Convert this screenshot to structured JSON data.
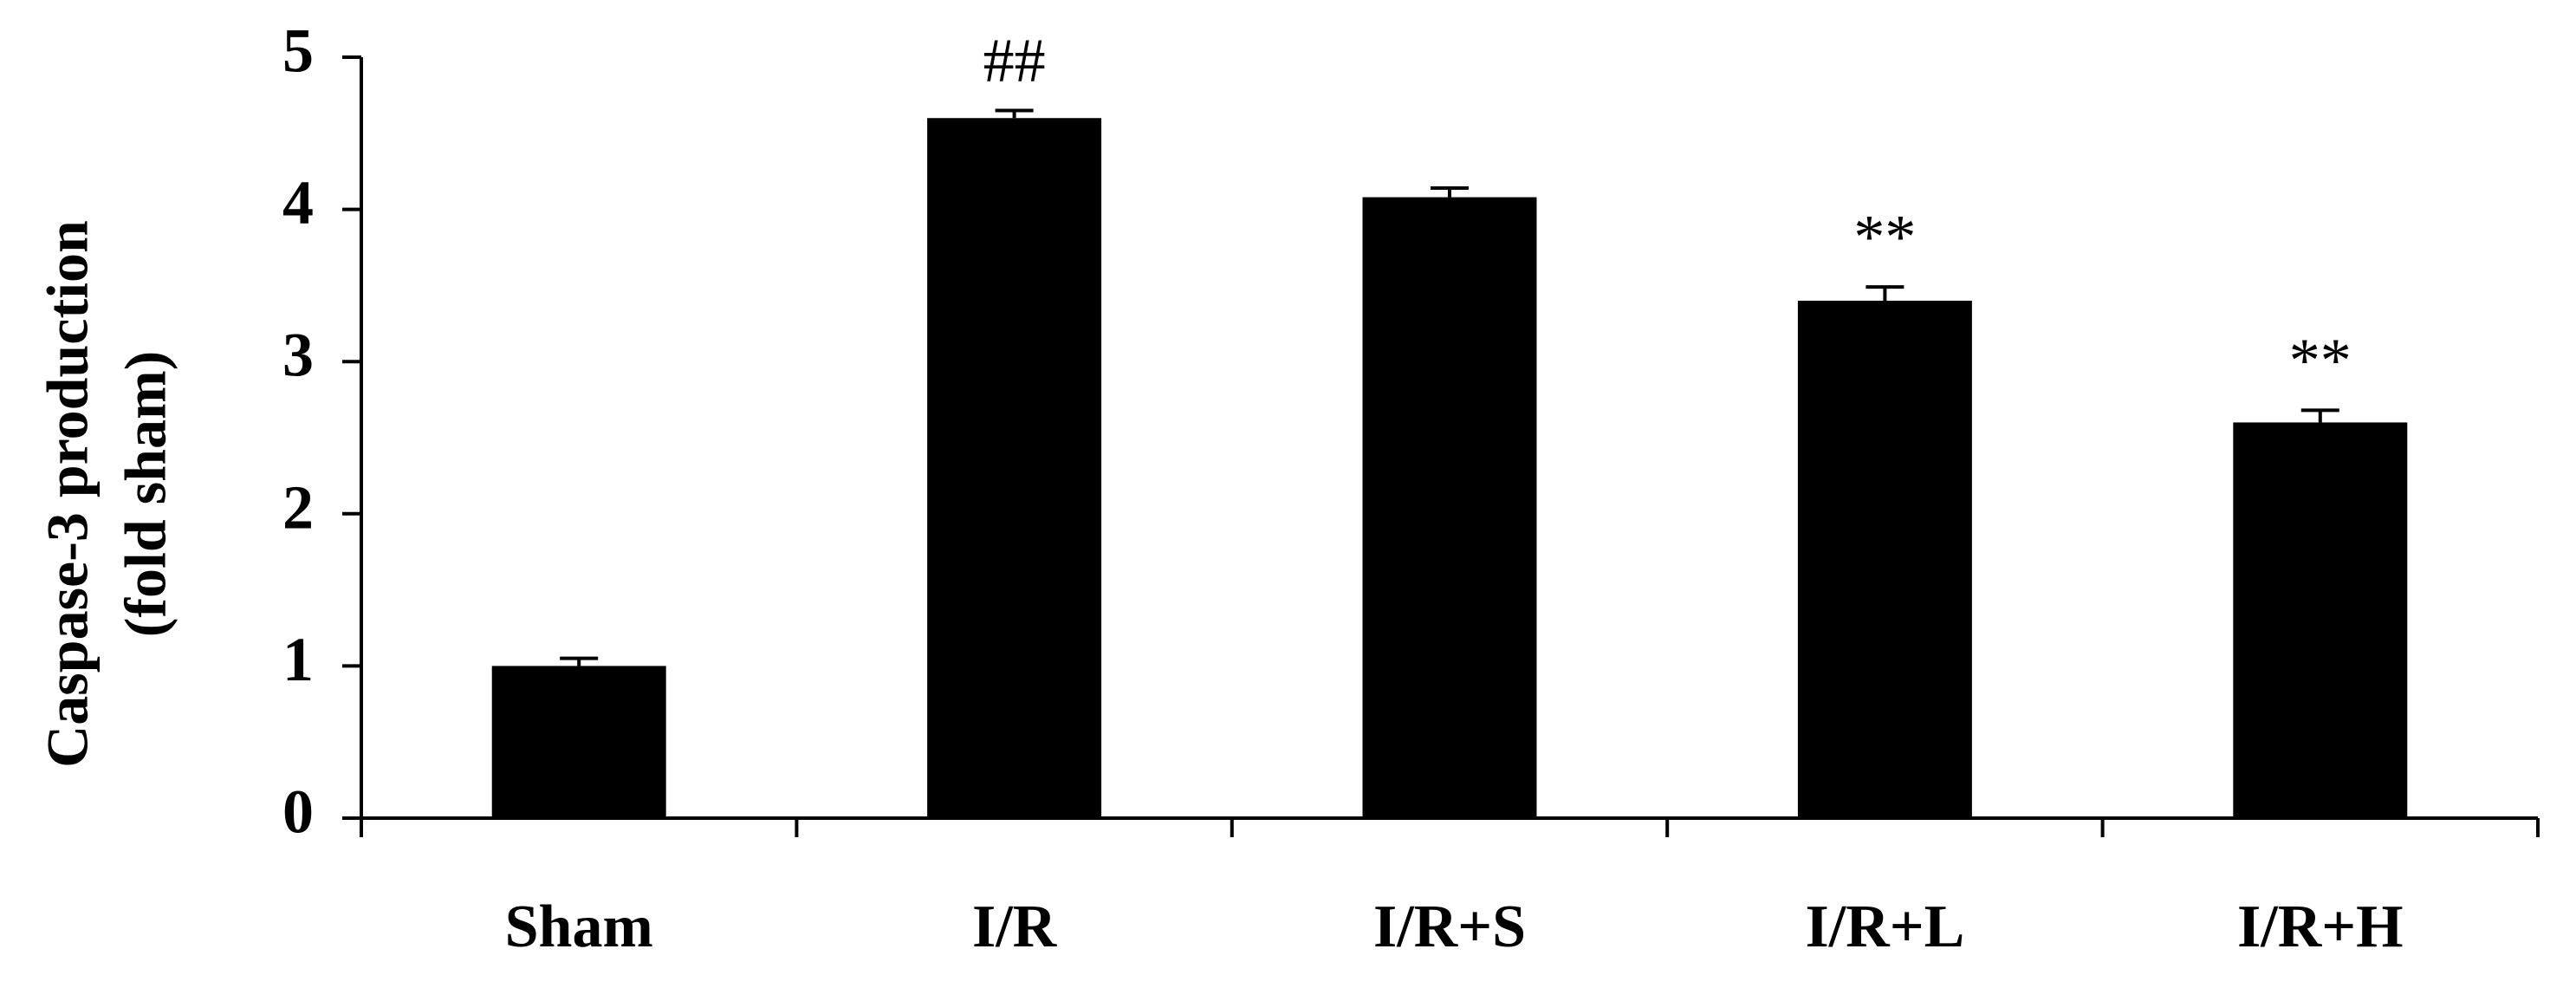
{
  "chart_data": {
    "type": "bar",
    "ylabel": [
      "Caspase-3 production",
      "(fold sham)"
    ],
    "categories": [
      "Sham",
      "I/R",
      "I/R+S",
      "I/R+L",
      "I/R+H"
    ],
    "values": [
      1.0,
      4.6,
      4.08,
      3.4,
      2.6
    ],
    "errors": [
      0.05,
      0.05,
      0.06,
      0.09,
      0.08
    ],
    "annotations": [
      null,
      "##",
      null,
      "**",
      "**"
    ],
    "color": "#000000",
    "ylim": [
      0,
      5
    ],
    "yticks": [
      0,
      1,
      2,
      3,
      4,
      5
    ],
    "grid": false
  }
}
